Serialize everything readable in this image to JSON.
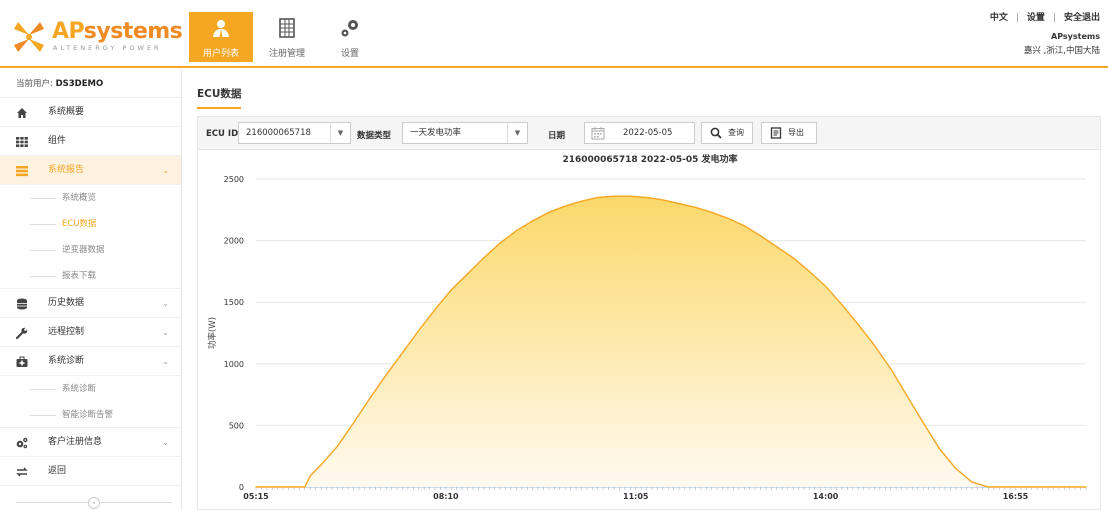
{
  "header": {
    "logo_brand_ap": "AP",
    "logo_brand_systems": "systems",
    "logo_tagline": "ALTENERGY POWER",
    "nav": [
      {
        "label": "用户列表",
        "active": true
      },
      {
        "label": "注册管理",
        "active": false
      },
      {
        "label": "设置",
        "active": false
      }
    ],
    "links": {
      "lang": "中文",
      "settings": "设置",
      "logout": "安全退出",
      "sep": "|"
    },
    "brand": "APsystems",
    "location": "嘉兴 ,浙江,中国大陆"
  },
  "sidebar": {
    "current_user_label": "当前用户:",
    "current_user": "DS3DEMO",
    "items": [
      {
        "label": "系统概要",
        "icon": "home-icon"
      },
      {
        "label": "组件",
        "icon": "grid-icon"
      },
      {
        "label": "系统报告",
        "icon": "report-icon",
        "active": true,
        "chev": "⌄",
        "children": [
          {
            "label": "系统概览"
          },
          {
            "label": "ECU数据",
            "active": true
          },
          {
            "label": "逆变器数据"
          },
          {
            "label": "报表下载"
          }
        ]
      },
      {
        "label": "历史数据",
        "icon": "database-icon",
        "chev": "⌄"
      },
      {
        "label": "远程控制",
        "icon": "wrench-icon",
        "chev": "⌄"
      },
      {
        "label": "系统诊断",
        "icon": "medkit-icon",
        "chev": "⌄",
        "children": [
          {
            "label": "系统诊断"
          },
          {
            "label": "智能诊断告警"
          }
        ]
      },
      {
        "label": "客户注册信息",
        "icon": "gears-icon",
        "chev": "⌄"
      },
      {
        "label": "返回",
        "icon": "exchange-icon"
      }
    ]
  },
  "main": {
    "title": "ECU数据",
    "toolbar": {
      "ecu_label": "ECU ID",
      "ecu_value": "216000065718",
      "type_label": "数据类型",
      "type_value": "一天发电功率",
      "date_label": "日期",
      "date_value": "2022-05-05",
      "query_label": "查询",
      "export_label": "导出"
    }
  },
  "colors": {
    "accent": "#f5a623",
    "line": "#f5a623",
    "fill_top": "#fbd86a",
    "fill_bottom": "#fffaf0"
  },
  "chart_data": {
    "type": "area",
    "title": "216000065718 2022-05-05 发电功率",
    "ylabel": "功率(W)",
    "xlabel": "",
    "ylim": [
      0,
      2500
    ],
    "yticks": [
      0,
      500,
      1000,
      1500,
      2000,
      2500
    ],
    "xticks": [
      "05:15",
      "08:10",
      "11:05",
      "14:00",
      "16:55"
    ],
    "grid": true,
    "series": [
      {
        "x": [
          "05:15",
          "05:30",
          "05:45",
          "06:00",
          "06:05",
          "06:15",
          "06:30",
          "06:45",
          "07:00",
          "07:15",
          "07:30",
          "07:45",
          "08:00",
          "08:15",
          "08:30",
          "08:45",
          "09:00",
          "09:15",
          "09:30",
          "09:45",
          "10:00",
          "10:15",
          "10:30",
          "10:45",
          "11:00",
          "11:15",
          "11:30",
          "11:45",
          "12:00",
          "12:15",
          "12:30",
          "12:45",
          "13:00",
          "13:15",
          "13:30",
          "13:45",
          "14:00",
          "14:15",
          "14:30",
          "14:45",
          "15:00",
          "15:15",
          "15:30",
          "15:45",
          "16:00",
          "16:15",
          "16:30",
          "16:45",
          "17:00",
          "17:15",
          "17:30",
          "17:45",
          "18:00"
        ],
        "values": [
          0,
          0,
          0,
          0,
          90,
          180,
          330,
          520,
          720,
          910,
          1090,
          1270,
          1440,
          1600,
          1730,
          1860,
          1980,
          2080,
          2160,
          2230,
          2280,
          2320,
          2350,
          2360,
          2360,
          2350,
          2330,
          2300,
          2270,
          2230,
          2180,
          2120,
          2040,
          1950,
          1860,
          1750,
          1630,
          1480,
          1320,
          1150,
          960,
          740,
          520,
          310,
          150,
          40,
          0,
          0,
          0,
          0,
          0,
          0,
          0
        ]
      }
    ]
  }
}
